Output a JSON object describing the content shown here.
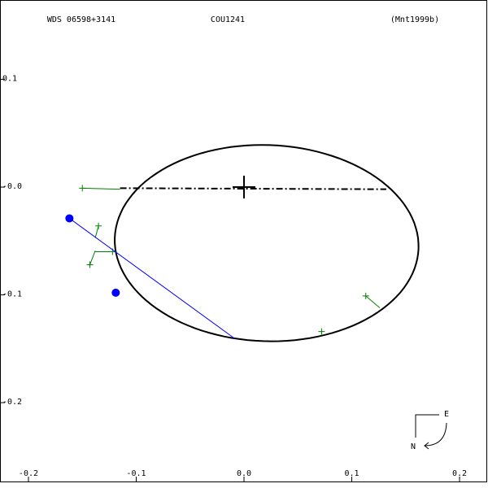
{
  "chart_data": {
    "type": "orbit",
    "titles": [
      "WDS 06598+3141",
      "COU1241",
      "(Mnt1999b)"
    ],
    "xlim": [
      -0.2264,
      0.2264
    ],
    "ylim": [
      -0.2792,
      0.1736
    ],
    "xticks": [
      -0.2,
      -0.1,
      {
        "value": 0,
        "label": "0.0"
      },
      0.1,
      0.2
    ],
    "yticks": [
      0.1,
      {
        "value": 0,
        "label": "-0.0"
      },
      -0.1,
      -0.2
    ],
    "orbit": {
      "color": "#000000",
      "center_x": 0.021,
      "center_y": -0.052,
      "semi_major": 0.141,
      "semi_minor": 0.091,
      "angle": -2
    },
    "node_line": {
      "color": "#000000",
      "x": [
        -0.115,
        0.132
      ],
      "y": [
        -0.001,
        -0.002
      ]
    },
    "primary": {
      "color": "#000000",
      "x": 0,
      "y": 0
    },
    "observations": {
      "color": "#008000",
      "x": [
        -0.15,
        -0.135,
        -0.143,
        -0.122,
        0.113,
        0.072
      ],
      "y": [
        -0.001,
        -0.036,
        -0.072,
        -0.06,
        -0.101,
        -0.134
      ],
      "fit_x": [
        -0.115,
        -0.138,
        -0.138,
        -0.138,
        0.126,
        0.072
      ],
      "fit_y": [
        -0.002,
        -0.047,
        -0.059,
        -0.06,
        -0.112,
        -0.136
      ]
    },
    "measurements": {
      "color": "#0000ff",
      "x": [
        -0.162,
        -0.119
      ],
      "y": [
        -0.029,
        -0.098
      ],
      "fit_x": [
        -0.008,
        -0.119
      ],
      "fit_y": [
        -0.141,
        -0.098
      ]
    },
    "compass": {
      "east": "E",
      "north": "N"
    }
  }
}
